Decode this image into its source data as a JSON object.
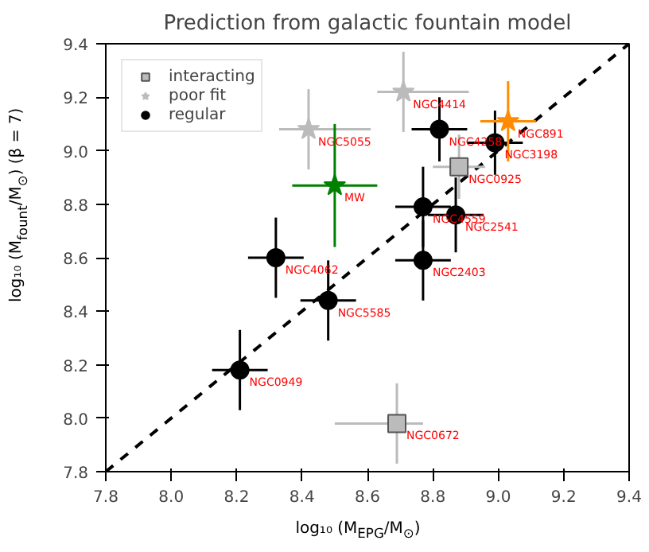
{
  "chart_data": {
    "type": "scatter",
    "title": "Prediction from galactic fountain model",
    "xlabel": "log₁₀ (M$_{EPG}$/M$_{⊙}$)",
    "ylabel": "log₁₀ (M$_{fount}$/M$_{⊙}$) (β = 7)",
    "xlim": [
      7.8,
      9.4
    ],
    "ylim": [
      7.8,
      9.4
    ],
    "xticks": [
      {
        "value": 7.8,
        "label": "7.8"
      },
      {
        "value": 8.0,
        "label": "8.0"
      },
      {
        "value": 8.2,
        "label": "8.2"
      },
      {
        "value": 8.4,
        "label": "8.4"
      },
      {
        "value": 8.6,
        "label": "8.6"
      },
      {
        "value": 8.8,
        "label": "8.8"
      },
      {
        "value": 9.0,
        "label": "9.0"
      },
      {
        "value": 9.2,
        "label": "9.2"
      },
      {
        "value": 9.4,
        "label": "9.4"
      }
    ],
    "yticks": [
      {
        "value": 7.8,
        "label": "7.8"
      },
      {
        "value": 8.0,
        "label": "8.0"
      },
      {
        "value": 8.2,
        "label": "8.2"
      },
      {
        "value": 8.4,
        "label": "8.4"
      },
      {
        "value": 8.6,
        "label": "8.6"
      },
      {
        "value": 8.8,
        "label": "8.8"
      },
      {
        "value": 9.0,
        "label": "9.0"
      },
      {
        "value": 9.2,
        "label": "9.2"
      },
      {
        "value": 9.4,
        "label": "9.4"
      }
    ],
    "grid": false,
    "legend": "top left",
    "series": [
      {
        "type": "line",
        "color": "#000000",
        "line_style": "dashed",
        "marker": "none",
        "x": [
          7.8,
          9.4
        ],
        "values": [
          7.8,
          9.4
        ]
      },
      {
        "name": "interacting",
        "color": "#bbbbbb",
        "marker": "square",
        "x": [
          8.88,
          8.69
        ],
        "values": [
          8.94,
          7.98
        ],
        "xerrors": [
          0.08,
          [
            8.5,
            8.77
          ]
        ],
        "errors": [
          0.12,
          0.15
        ]
      },
      {
        "name": "poor fit",
        "color": "#bbbbbb",
        "marker": "star",
        "x": [
          8.42,
          8.71
        ],
        "values": [
          9.08,
          9.22
        ],
        "xerrors": [
          [
            8.33,
            8.61
          ],
          [
            8.63,
            8.91
          ]
        ],
        "errors": [
          0.15,
          0.15
        ]
      },
      {
        "name": "regular",
        "color": "#000000",
        "marker": "circle",
        "x": [
          8.82,
          8.99,
          8.77,
          8.87,
          8.77,
          8.32,
          8.48,
          8.21
        ],
        "values": [
          9.08,
          9.03,
          8.79,
          8.76,
          8.59,
          8.6,
          8.44,
          8.18
        ],
        "xerrors": [
          0.085,
          0.085,
          0.085,
          0.085,
          0.085,
          0.085,
          0.085,
          0.085
        ],
        "errors": [
          0.12,
          0.12,
          0.15,
          0.14,
          0.15,
          0.15,
          0.15,
          0.15
        ]
      },
      {
        "color": "#008000",
        "marker": "star",
        "x": [
          8.5
        ],
        "values": [
          8.87
        ],
        "xerrors": [
          0.13
        ],
        "errors": [
          0.23
        ]
      },
      {
        "color": "#ff8c00",
        "marker": "star",
        "x": [
          9.03
        ],
        "values": [
          9.11
        ],
        "xerrors": [
          0.085
        ],
        "errors": [
          0.15
        ]
      }
    ],
    "annotations": [
      {
        "text": "NGC4414",
        "x": 8.71,
        "y": 9.22
      },
      {
        "text": "NGC5055",
        "x": 8.42,
        "y": 9.08
      },
      {
        "text": "NGC891",
        "x": 9.03,
        "y": 9.11
      },
      {
        "text": "NGC4258",
        "x": 8.82,
        "y": 9.08
      },
      {
        "text": "NGC3198",
        "x": 8.99,
        "y": 9.03
      },
      {
        "text": "NGC0925",
        "x": 8.88,
        "y": 8.94
      },
      {
        "text": "MW",
        "x": 8.5,
        "y": 8.87
      },
      {
        "text": "NGC4559",
        "x": 8.77,
        "y": 8.79
      },
      {
        "text": "NGC2541",
        "x": 8.87,
        "y": 8.76
      },
      {
        "text": "NGC2403",
        "x": 8.77,
        "y": 8.59
      },
      {
        "text": "NGC4062",
        "x": 8.32,
        "y": 8.6
      },
      {
        "text": "NGC5585",
        "x": 8.48,
        "y": 8.44
      },
      {
        "text": "NGC0949",
        "x": 8.21,
        "y": 8.18
      },
      {
        "text": "NGC0672",
        "x": 8.69,
        "y": 7.98
      }
    ]
  }
}
